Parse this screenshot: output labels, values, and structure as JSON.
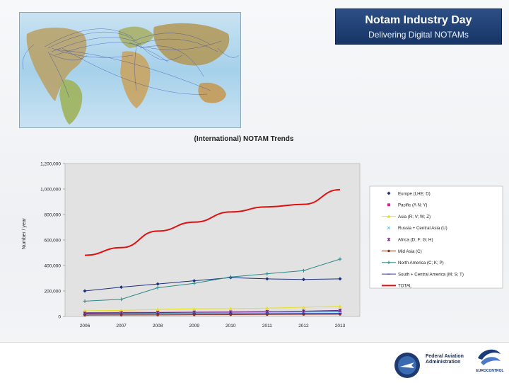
{
  "banner": {
    "title": "Notam Industry Day",
    "subtitle": "Delivering Digital NOTAMs"
  },
  "logos": {
    "faa_lines": [
      "Federal Aviation",
      "Administration"
    ],
    "eurocontrol": "EUROCONTROL"
  },
  "chart_data": {
    "type": "line",
    "title": "(International) NOTAM Trends",
    "ylabel": "Number / year",
    "xlabel": "",
    "x": [
      "2006",
      "2007",
      "2008",
      "2009",
      "2010",
      "2011",
      "2012",
      "2013"
    ],
    "ylim": [
      0,
      1200000
    ],
    "yticks": [
      0,
      200000,
      400000,
      600000,
      800000,
      1000000,
      1200000
    ],
    "ytick_labels": [
      "0",
      "200,000",
      "400,000",
      "600,000",
      "800,000",
      "1,000,000",
      "1,200,000"
    ],
    "grid": false,
    "legend_position": "right",
    "series": [
      {
        "name": "Europe (LHE; D)",
        "color": "#1f2e7a",
        "marker": "diamond",
        "values": [
          200000,
          230000,
          255000,
          280000,
          305000,
          295000,
          290000,
          295000
        ]
      },
      {
        "name": "Pacific (A N; Y)",
        "color": "#e020a0",
        "marker": "square",
        "values": [
          30000,
          32000,
          32000,
          34000,
          35000,
          38000,
          40000,
          42000
        ]
      },
      {
        "name": "Asia (R; V; W; Z)",
        "color": "#e8e020",
        "marker": "triangle",
        "values": [
          45000,
          48000,
          55000,
          60000,
          62000,
          65000,
          72000,
          80000
        ]
      },
      {
        "name": "Russia + Central Asia (U)",
        "color": "#60c8e8",
        "marker": "x",
        "values": [
          20000,
          22000,
          25000,
          28000,
          30000,
          32000,
          34000,
          36000
        ]
      },
      {
        "name": "Africa (D; F; G; H)",
        "color": "#702080",
        "marker": "star",
        "values": [
          25000,
          28000,
          30000,
          33000,
          35000,
          38000,
          42000,
          48000
        ]
      },
      {
        "name": "Mid Asia (C)",
        "color": "#8a3020",
        "marker": "dot",
        "values": [
          10000,
          11000,
          12000,
          13000,
          14000,
          15000,
          16000,
          17000
        ]
      },
      {
        "name": "North America (C; K; P)",
        "color": "#2a8a8a",
        "marker": "plus",
        "values": [
          120000,
          135000,
          225000,
          260000,
          310000,
          335000,
          360000,
          450000
        ]
      },
      {
        "name": "South + Central America (M; S; T)",
        "color": "#3040a0",
        "marker": "dash",
        "values": [
          18000,
          19000,
          20000,
          21000,
          22000,
          23000,
          24000,
          25000
        ]
      },
      {
        "name": "TOTAL",
        "color": "#e01010",
        "marker": "none",
        "values": [
          480000,
          540000,
          670000,
          740000,
          820000,
          860000,
          880000,
          995000
        ]
      }
    ]
  }
}
